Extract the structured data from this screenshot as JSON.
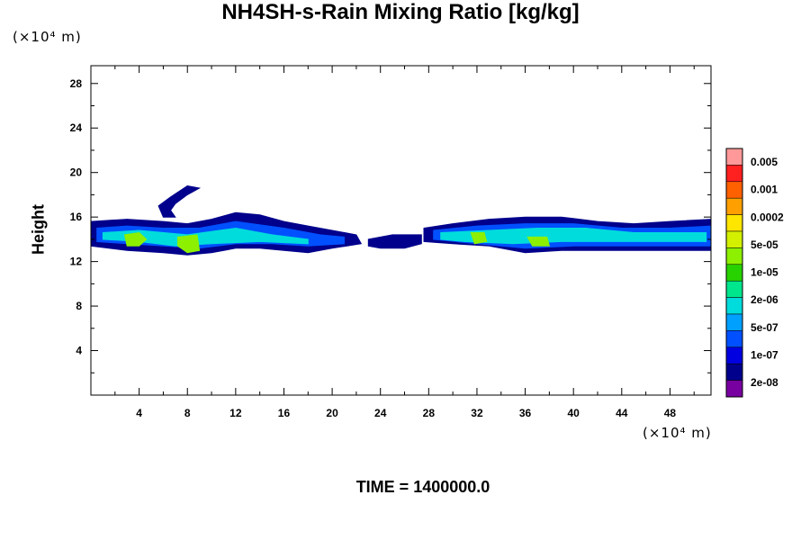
{
  "chart_data": {
    "type": "heatmap",
    "title": "NH4SH-s-Rain Mixing Ratio [kg/kg]",
    "ylabel": "Height",
    "xlabel": "",
    "x_unit": "(×10⁴ m)",
    "y_unit": "(×10⁴ m)",
    "xlim": [
      0,
      51.4
    ],
    "ylim": [
      0,
      29.6
    ],
    "x_ticks": [
      4,
      8,
      12,
      16,
      20,
      24,
      28,
      32,
      36,
      40,
      44,
      48
    ],
    "y_ticks": [
      4,
      8,
      12,
      16,
      20,
      24,
      28
    ],
    "colorbar": {
      "labels": [
        "0.005",
        "0.001",
        "0.0002",
        "5e-05",
        "1e-05",
        "2e-06",
        "5e-07",
        "1e-07",
        "2e-08"
      ],
      "colors": [
        "#ff9999",
        "#ff2020",
        "#ff6000",
        "#ffa000",
        "#ffe600",
        "#d2f000",
        "#8cf000",
        "#28d200",
        "#00e68c",
        "#00dcdc",
        "#00a0ff",
        "#0050ff",
        "#0000e0",
        "#00008c",
        "#7800a0"
      ]
    },
    "regions": [
      {
        "level": 1,
        "points": [
          [
            0,
            15.6
          ],
          [
            3,
            15.8
          ],
          [
            6,
            15.6
          ],
          [
            8,
            15.4
          ],
          [
            10,
            15.8
          ],
          [
            12,
            16.4
          ],
          [
            14,
            16.2
          ],
          [
            16,
            15.6
          ],
          [
            18,
            15.2
          ],
          [
            20,
            14.8
          ],
          [
            22,
            14.4
          ],
          [
            22.4,
            13.6
          ],
          [
            20,
            13.2
          ],
          [
            18,
            12.8
          ],
          [
            16,
            13
          ],
          [
            14,
            13.2
          ],
          [
            12,
            13.2
          ],
          [
            10,
            12.8
          ],
          [
            8,
            12.6
          ],
          [
            6,
            12.8
          ],
          [
            3,
            13
          ],
          [
            0,
            13.4
          ]
        ]
      },
      {
        "level": 1,
        "points": [
          [
            6,
            16
          ],
          [
            5.6,
            17
          ],
          [
            6.6,
            17.8
          ],
          [
            8,
            18.8
          ],
          [
            9,
            18.6
          ],
          [
            8,
            18
          ],
          [
            7,
            17.2
          ],
          [
            6.6,
            16.6
          ],
          [
            7,
            16
          ]
        ]
      },
      {
        "level": 1,
        "points": [
          [
            23,
            14
          ],
          [
            25,
            14.4
          ],
          [
            27.4,
            14.4
          ],
          [
            27.4,
            13.6
          ],
          [
            26,
            13.2
          ],
          [
            24,
            13.2
          ],
          [
            23,
            13.4
          ]
        ]
      },
      {
        "level": 1,
        "points": [
          [
            27.6,
            15
          ],
          [
            30,
            15.4
          ],
          [
            33,
            15.8
          ],
          [
            36,
            16
          ],
          [
            39,
            16
          ],
          [
            42,
            15.6
          ],
          [
            45,
            15.4
          ],
          [
            48,
            15.6
          ],
          [
            51.4,
            15.8
          ],
          [
            51.4,
            13
          ],
          [
            48,
            13
          ],
          [
            45,
            13
          ],
          [
            42,
            13
          ],
          [
            39,
            13
          ],
          [
            36,
            12.8
          ],
          [
            33,
            13.4
          ],
          [
            30,
            13.6
          ],
          [
            27.6,
            13.8
          ]
        ]
      },
      {
        "level": 3,
        "points": [
          [
            0.5,
            15
          ],
          [
            3,
            15.2
          ],
          [
            6,
            15
          ],
          [
            9,
            15
          ],
          [
            12,
            15.6
          ],
          [
            16,
            15
          ],
          [
            19,
            14.4
          ],
          [
            21,
            14.2
          ],
          [
            21,
            13.6
          ],
          [
            18,
            13.4
          ],
          [
            15,
            13.6
          ],
          [
            12,
            13.6
          ],
          [
            9,
            13.2
          ],
          [
            6,
            13.4
          ],
          [
            3,
            13.6
          ],
          [
            0.5,
            13.8
          ]
        ]
      },
      {
        "level": 3,
        "points": [
          [
            28.4,
            14.8
          ],
          [
            32,
            15.2
          ],
          [
            36,
            15.4
          ],
          [
            40,
            15.4
          ],
          [
            44,
            15
          ],
          [
            48,
            15
          ],
          [
            51.4,
            15.2
          ],
          [
            51.4,
            13.4
          ],
          [
            48,
            13.4
          ],
          [
            44,
            13.4
          ],
          [
            40,
            13.4
          ],
          [
            36,
            13.2
          ],
          [
            32,
            13.6
          ],
          [
            28.4,
            14
          ]
        ]
      },
      {
        "level": 5,
        "points": [
          [
            1,
            14.6
          ],
          [
            4,
            14.8
          ],
          [
            8,
            14.4
          ],
          [
            12,
            15
          ],
          [
            15,
            14.4
          ],
          [
            18,
            14
          ],
          [
            18,
            13.6
          ],
          [
            14,
            13.8
          ],
          [
            10,
            13.6
          ],
          [
            7,
            13.4
          ],
          [
            4,
            13.8
          ],
          [
            1,
            14
          ]
        ]
      },
      {
        "level": 5,
        "points": [
          [
            29,
            14.6
          ],
          [
            33,
            14.8
          ],
          [
            37,
            15
          ],
          [
            41,
            15
          ],
          [
            45,
            14.6
          ],
          [
            49,
            14.6
          ],
          [
            51,
            14.6
          ],
          [
            51,
            13.8
          ],
          [
            47,
            13.8
          ],
          [
            43,
            13.8
          ],
          [
            39,
            13.8
          ],
          [
            35,
            13.6
          ],
          [
            31,
            13.8
          ],
          [
            29,
            14
          ]
        ]
      },
      {
        "level": 8,
        "points": [
          [
            2.8,
            14.4
          ],
          [
            4,
            14.6
          ],
          [
            4.6,
            14
          ],
          [
            4,
            13.4
          ],
          [
            3,
            13.4
          ]
        ]
      },
      {
        "level": 8,
        "points": [
          [
            7.2,
            14.2
          ],
          [
            8.8,
            14.4
          ],
          [
            9,
            13
          ],
          [
            8,
            12.8
          ],
          [
            7.2,
            13.4
          ]
        ]
      },
      {
        "level": 8,
        "points": [
          [
            31.5,
            14.6
          ],
          [
            32.6,
            14.6
          ],
          [
            32.8,
            13.8
          ],
          [
            31.8,
            13.6
          ]
        ]
      },
      {
        "level": 8,
        "points": [
          [
            36.2,
            14.2
          ],
          [
            37.8,
            14.2
          ],
          [
            38,
            13.4
          ],
          [
            36.6,
            13.4
          ]
        ]
      }
    ]
  },
  "footer": {
    "time_label": "TIME = 1400000.0"
  }
}
